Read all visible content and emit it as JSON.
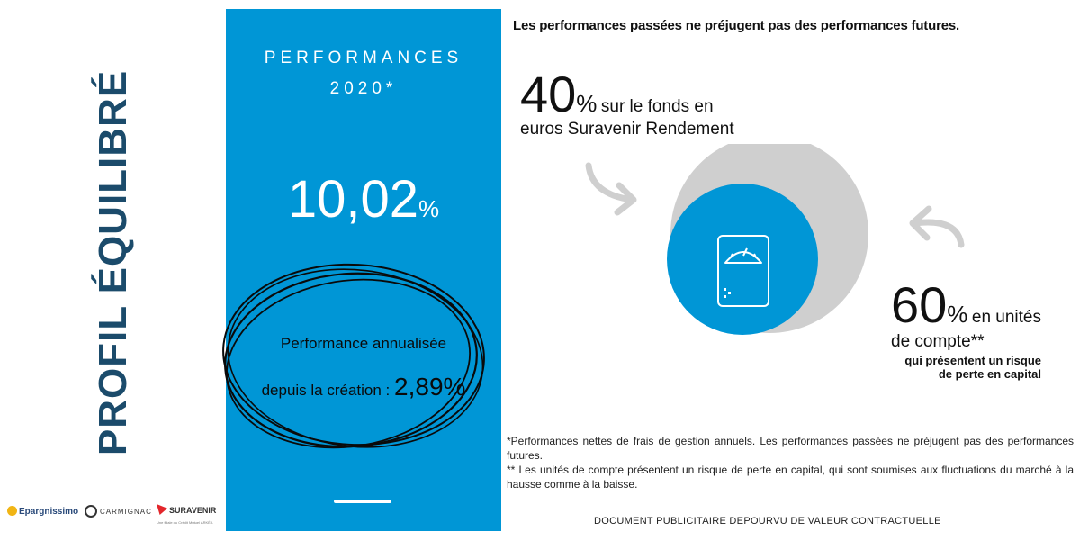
{
  "profile_title": "PROFIL ÉQUILIBRÉ",
  "logos": {
    "epargnissimo": "Epargnissimo",
    "carmignac": "CARMIGNAC",
    "suravenir": "SURAVENIR",
    "suravenir_sub": "Une filiale du Crédit Mutuel ARKÉA"
  },
  "panel": {
    "heading_line1": "PERFORMANCES",
    "heading_line2": "2020*",
    "value": "10,02",
    "value_unit": "%",
    "annualized_label_line1": "Performance annualisée",
    "annualized_label_line2": "depuis la création :",
    "annualized_value": "2,89%"
  },
  "disclaimer_top": "Les performances passées ne préjugent pas des performances futures.",
  "allocation": {
    "fonds_number": "40",
    "fonds_pct": "%",
    "fonds_text_line1": "sur le fonds en",
    "fonds_text_line2": "euros Suravenir Rendement",
    "uc_number": "60",
    "uc_pct": "%",
    "uc_text_line1": "en unités",
    "uc_text_line2": "de compte**",
    "uc_risk_line1": "qui présentent un risque",
    "uc_risk_line2": "de perte en capital",
    "fonds_share": 40,
    "uc_share": 60
  },
  "icons": {
    "scale": "scale-icon",
    "arrow_left": "curved-arrow-icon",
    "arrow_right": "curved-arrow-icon"
  },
  "colors": {
    "panel_blue": "#0096d6",
    "circle_grey": "#cfcfcf",
    "title_navy": "#1b4b6b"
  },
  "footnotes": {
    "note1": "*Performances nettes de frais de gestion annuels. Les performances passées ne préjugent pas des performances futures.",
    "note2": "** Les unités de compte présentent un risque de perte en capital, qui sont soumises aux fluctuations du marché à la hausse comme à la baisse."
  },
  "document_note": "DOCUMENT PUBLICITAIRE DEPOURVU DE VALEUR CONTRACTUELLE"
}
